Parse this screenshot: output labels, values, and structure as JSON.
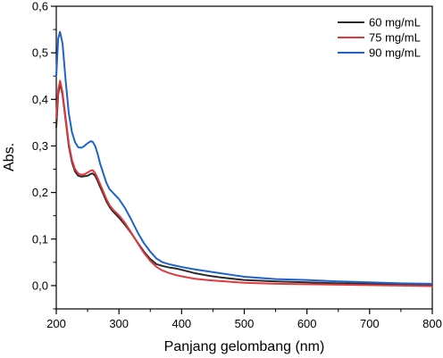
{
  "chart_data": {
    "type": "line",
    "xlabel": "Panjang gelombang (nm)",
    "ylabel": "Abs.",
    "xlim": [
      200,
      800
    ],
    "ylim": [
      -0.05,
      0.6
    ],
    "x_ticks": [
      "200",
      "300",
      "400",
      "500",
      "600",
      "700",
      "800"
    ],
    "y_ticks": [
      "0,0",
      "0,1",
      "0,2",
      "0,3",
      "0,4",
      "0,5",
      "0,6"
    ],
    "grid": false,
    "legend_position": "top-right",
    "series": [
      {
        "name": "60 mg/mL",
        "color": "#2b2b2b",
        "x": [
          200,
          203,
          206,
          210,
          215,
          220,
          225,
          230,
          235,
          240,
          245,
          250,
          255,
          258,
          262,
          266,
          270,
          275,
          280,
          285,
          290,
          300,
          310,
          320,
          330,
          340,
          350,
          360,
          370,
          380,
          390,
          400,
          420,
          440,
          460,
          480,
          500,
          550,
          600,
          650,
          700,
          750,
          800
        ],
        "y": [
          0.34,
          0.41,
          0.435,
          0.41,
          0.355,
          0.3,
          0.265,
          0.245,
          0.236,
          0.234,
          0.235,
          0.236,
          0.24,
          0.241,
          0.236,
          0.225,
          0.212,
          0.197,
          0.181,
          0.169,
          0.16,
          0.146,
          0.13,
          0.112,
          0.092,
          0.073,
          0.057,
          0.046,
          0.042,
          0.039,
          0.037,
          0.034,
          0.027,
          0.022,
          0.018,
          0.015,
          0.012,
          0.009,
          0.007,
          0.005,
          0.004,
          0.003,
          0.002
        ]
      },
      {
        "name": "75 mg/mL",
        "color": "#e0393e",
        "x": [
          200,
          203,
          206,
          210,
          215,
          220,
          225,
          230,
          235,
          240,
          245,
          250,
          255,
          258,
          262,
          266,
          270,
          275,
          280,
          285,
          290,
          300,
          310,
          320,
          330,
          340,
          350,
          360,
          370,
          380,
          390,
          400,
          420,
          440,
          460,
          480,
          500,
          550,
          600,
          650,
          700,
          750,
          800
        ],
        "y": [
          0.36,
          0.42,
          0.44,
          0.415,
          0.36,
          0.305,
          0.27,
          0.25,
          0.241,
          0.238,
          0.239,
          0.243,
          0.247,
          0.248,
          0.242,
          0.231,
          0.218,
          0.202,
          0.186,
          0.173,
          0.164,
          0.151,
          0.134,
          0.113,
          0.091,
          0.07,
          0.053,
          0.04,
          0.032,
          0.027,
          0.023,
          0.02,
          0.015,
          0.012,
          0.01,
          0.008,
          0.006,
          0.004,
          0.003,
          0.002,
          0.001,
          0.0,
          -0.001
        ]
      },
      {
        "name": "90 mg/mL",
        "color": "#1f63c9",
        "x": [
          200,
          203,
          206,
          210,
          215,
          220,
          225,
          230,
          235,
          240,
          245,
          250,
          255,
          258,
          262,
          266,
          270,
          275,
          280,
          285,
          290,
          300,
          310,
          320,
          330,
          340,
          350,
          360,
          370,
          380,
          390,
          400,
          420,
          440,
          460,
          480,
          500,
          550,
          600,
          650,
          700,
          750,
          800
        ],
        "y": [
          0.45,
          0.53,
          0.545,
          0.52,
          0.44,
          0.37,
          0.33,
          0.308,
          0.297,
          0.296,
          0.3,
          0.306,
          0.31,
          0.309,
          0.3,
          0.283,
          0.262,
          0.241,
          0.221,
          0.207,
          0.2,
          0.186,
          0.166,
          0.141,
          0.114,
          0.091,
          0.073,
          0.058,
          0.05,
          0.046,
          0.043,
          0.04,
          0.035,
          0.031,
          0.027,
          0.023,
          0.019,
          0.014,
          0.012,
          0.009,
          0.007,
          0.005,
          0.004
        ]
      }
    ]
  }
}
